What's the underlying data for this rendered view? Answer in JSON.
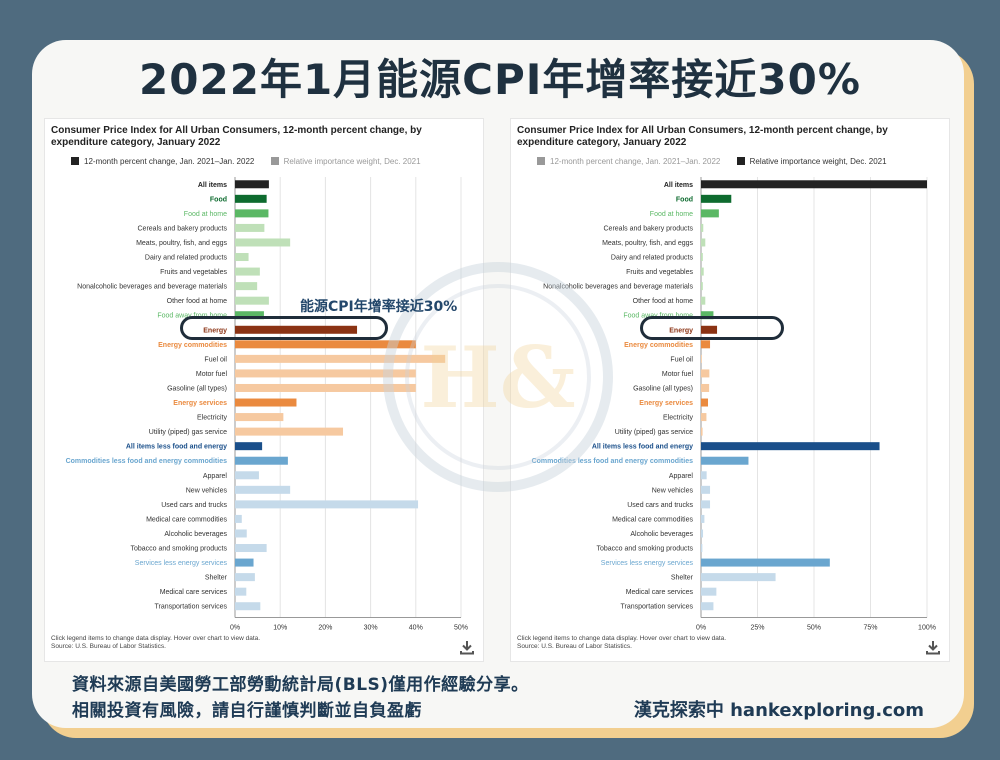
{
  "title": "2022年1月能源CPI年增率接近30%",
  "annotation": "能源CPI年增率接近30%",
  "footer": {
    "line1": "資料來源自美國勞工部勞動統計局(BLS)僅用作經驗分享。",
    "line2": "相關投資有風險，請自行謹慎判斷並自負盈虧",
    "brand": "漢克探索中 hankexploring.com"
  },
  "watermark_text": "H&",
  "colors": {
    "total": "#222222",
    "food_group": "#0e6b2f",
    "food_sub": "#5bb865",
    "food_item": "#bfe0b8",
    "energy_header": "#8b3314",
    "energy_sub": "#ea8a3f",
    "energy_item": "#f6c9a0",
    "core_header": "#1a4f8a",
    "core_sub": "#6aa6cf",
    "core_item": "#c5daea"
  },
  "chart_data": [
    {
      "type": "bar",
      "orientation": "horizontal",
      "title": "Consumer Price Index for All Urban Consumers, 12-month percent change, by expenditure category, January 2022",
      "legend": [
        {
          "label": "12-month percent change, Jan. 2021–Jan. 2022",
          "color": "#222222",
          "active": true
        },
        {
          "label": "Relative importance weight, Dec. 2021",
          "color": "#999999",
          "active": false
        }
      ],
      "categories": [
        "All items",
        "Food",
        "Food at home",
        "Cereals and bakery products",
        "Meats, poultry, fish, and eggs",
        "Dairy and related products",
        "Fruits and vegetables",
        "Nonalcoholic beverages and beverage materials",
        "Other food at home",
        "Food away from home",
        "Energy",
        "Energy commodities",
        "Fuel oil",
        "Motor fuel",
        "Gasoline (all types)",
        "Energy services",
        "Electricity",
        "Utility (piped) gas service",
        "All items less food and energy",
        "Commodities less food and energy commodities",
        "Apparel",
        "New vehicles",
        "Used cars and trucks",
        "Medical care commodities",
        "Alcoholic beverages",
        "Tobacco and smoking products",
        "Services less energy services",
        "Shelter",
        "Medical care services",
        "Transportation services"
      ],
      "category_groups": [
        "total",
        "food_group",
        "food_sub",
        "food_item",
        "food_item",
        "food_item",
        "food_item",
        "food_item",
        "food_item",
        "food_sub",
        "energy_header",
        "energy_sub",
        "energy_item",
        "energy_item",
        "energy_item",
        "energy_sub",
        "energy_item",
        "energy_item",
        "core_header",
        "core_sub",
        "core_item",
        "core_item",
        "core_item",
        "core_item",
        "core_item",
        "core_item",
        "core_sub",
        "core_item",
        "core_item",
        "core_item"
      ],
      "label_colors": [
        "#222222",
        "#0e6b2f",
        "#5bb865",
        "#333333",
        "#333333",
        "#333333",
        "#333333",
        "#333333",
        "#333333",
        "#5bb865",
        "#8b3314",
        "#ea8a3f",
        "#333333",
        "#333333",
        "#333333",
        "#ea8a3f",
        "#333333",
        "#333333",
        "#1a4f8a",
        "#6aa6cf",
        "#333333",
        "#333333",
        "#333333",
        "#333333",
        "#333333",
        "#333333",
        "#6aa6cf",
        "#333333",
        "#333333",
        "#333333"
      ],
      "label_bold": [
        true,
        true,
        false,
        false,
        false,
        false,
        false,
        false,
        false,
        false,
        true,
        true,
        false,
        false,
        false,
        true,
        false,
        false,
        true,
        true,
        false,
        false,
        false,
        false,
        false,
        false,
        false,
        false,
        false,
        false
      ],
      "values": [
        7.5,
        7.0,
        7.4,
        6.5,
        12.2,
        3.0,
        5.5,
        4.9,
        7.5,
        6.4,
        27.0,
        40.0,
        46.5,
        40.0,
        40.0,
        13.6,
        10.7,
        23.9,
        6.0,
        11.7,
        5.3,
        12.2,
        40.5,
        1.5,
        2.6,
        7.0,
        4.1,
        4.4,
        2.5,
        5.6
      ],
      "xlim": [
        0,
        50
      ],
      "xticks": [
        "0%",
        "10%",
        "20%",
        "30%",
        "40%",
        "50%"
      ],
      "note": "Click legend items to change data display. Hover over chart to view data.",
      "source": "Source: U.S. Bureau of Labor Statistics."
    },
    {
      "type": "bar",
      "orientation": "horizontal",
      "title": "Consumer Price Index for All Urban Consumers, 12-month percent change, by expenditure category, January 2022",
      "legend": [
        {
          "label": "12-month percent change, Jan. 2021–Jan. 2022",
          "color": "#999999",
          "active": false
        },
        {
          "label": "Relative importance weight, Dec. 2021",
          "color": "#222222",
          "active": true
        }
      ],
      "categories": [
        "All items",
        "Food",
        "Food at home",
        "Cereals and bakery products",
        "Meats, poultry, fish, and eggs",
        "Dairy and related products",
        "Fruits and vegetables",
        "Nonalcoholic beverages and beverage materials",
        "Other food at home",
        "Food away from home",
        "Energy",
        "Energy commodities",
        "Fuel oil",
        "Motor fuel",
        "Gasoline (all types)",
        "Energy services",
        "Electricity",
        "Utility (piped) gas service",
        "All items less food and energy",
        "Commodities less food and energy commodities",
        "Apparel",
        "New vehicles",
        "Used cars and trucks",
        "Medical care commodities",
        "Alcoholic beverages",
        "Tobacco and smoking products",
        "Services less energy services",
        "Shelter",
        "Medical care services",
        "Transportation services"
      ],
      "category_groups": [
        "total",
        "food_group",
        "food_sub",
        "food_item",
        "food_item",
        "food_item",
        "food_item",
        "food_item",
        "food_item",
        "food_sub",
        "energy_header",
        "energy_sub",
        "energy_item",
        "energy_item",
        "energy_item",
        "energy_sub",
        "energy_item",
        "energy_item",
        "core_header",
        "core_sub",
        "core_item",
        "core_item",
        "core_item",
        "core_item",
        "core_item",
        "core_item",
        "core_sub",
        "core_item",
        "core_item",
        "core_item"
      ],
      "label_colors": [
        "#222222",
        "#0e6b2f",
        "#5bb865",
        "#333333",
        "#333333",
        "#333333",
        "#333333",
        "#333333",
        "#333333",
        "#5bb865",
        "#8b3314",
        "#ea8a3f",
        "#333333",
        "#333333",
        "#333333",
        "#ea8a3f",
        "#333333",
        "#333333",
        "#1a4f8a",
        "#6aa6cf",
        "#333333",
        "#333333",
        "#333333",
        "#333333",
        "#333333",
        "#333333",
        "#6aa6cf",
        "#333333",
        "#333333",
        "#333333"
      ],
      "label_bold": [
        true,
        true,
        false,
        false,
        false,
        false,
        false,
        false,
        false,
        false,
        true,
        true,
        false,
        false,
        false,
        true,
        false,
        false,
        true,
        true,
        false,
        false,
        false,
        false,
        false,
        false,
        false,
        false,
        false,
        false
      ],
      "values": [
        100,
        13.4,
        7.9,
        1.0,
        1.9,
        0.8,
        1.2,
        0.8,
        1.9,
        5.5,
        7.1,
        4.0,
        0.1,
        3.7,
        3.6,
        3.1,
        2.4,
        0.7,
        79.0,
        21.0,
        2.5,
        4.0,
        4.0,
        1.5,
        0.9,
        0.6,
        57.0,
        33.0,
        6.8,
        5.5
      ],
      "xlim": [
        0,
        100
      ],
      "xticks": [
        "0%",
        "25%",
        "50%",
        "75%",
        "100%"
      ],
      "note": "Click legend items to change data display. Hover over chart to view data.",
      "source": "Source: U.S. Bureau of Labor Statistics."
    }
  ]
}
